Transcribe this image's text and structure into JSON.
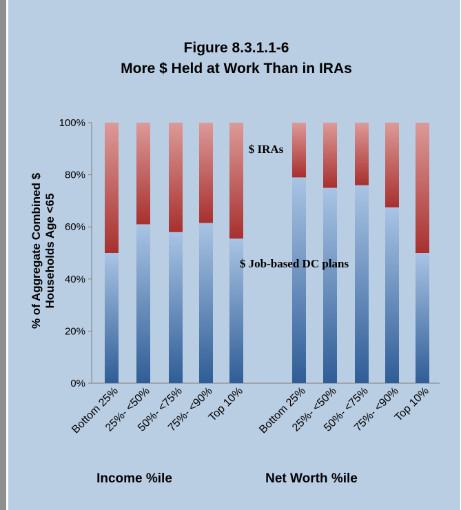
{
  "chart_data": {
    "type": "bar",
    "stacked": true,
    "title": "Figure 8.3.1.1-6",
    "subtitle": "More $ Held at Work Than in IRAs",
    "ylabel_line1": "% of Aggregate Combined $",
    "ylabel_line2": "Households Age <65",
    "ylim": [
      0,
      100
    ],
    "yticks": [
      "0%",
      "20%",
      "40%",
      "60%",
      "80%",
      "100%"
    ],
    "ytick_values": [
      0,
      20,
      40,
      60,
      80,
      100
    ],
    "categories": [
      "Bottom 25%",
      "25%- <50%",
      "50%- <75%",
      "75%- <90%",
      "Top 10%",
      "Bottom 25%",
      "25%- <50%",
      "50%- <75%",
      "75%- <90%",
      "Top 10%"
    ],
    "groups": [
      {
        "label": "Income %ile",
        "indices": [
          0,
          1,
          2,
          3,
          4
        ]
      },
      {
        "label": "Net Worth %ile",
        "indices": [
          5,
          6,
          7,
          8,
          9
        ]
      }
    ],
    "series": [
      {
        "name": "$ Job-based DC plans",
        "values": [
          50,
          61,
          58,
          61.5,
          55.5,
          79,
          75,
          76,
          67.5,
          50
        ],
        "color_top": "#a9c4e4",
        "color_bottom": "#2f5d96"
      },
      {
        "name": "$ IRAs",
        "values": [
          50,
          39,
          42,
          38.5,
          44.5,
          21,
          25,
          24,
          32.5,
          50
        ],
        "color_top": "#dc9a98",
        "color_bottom": "#a8302e"
      }
    ],
    "annotations": [
      "$ IRAs",
      "$ Job-based DC plans"
    ],
    "grid": false,
    "legend": "none"
  }
}
